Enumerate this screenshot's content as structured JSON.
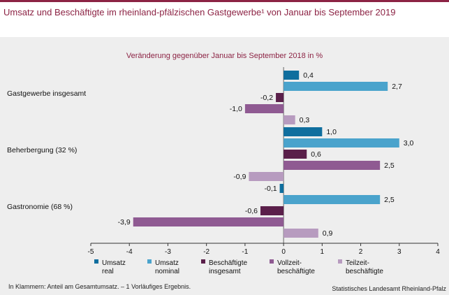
{
  "header": {
    "title": "Umsatz und Beschäftigte im rheinland-pfälzischen Gastgewerbe¹ von Januar bis September 2019",
    "subtitle": "Veränderung gegenüber Januar bis September 2018 in %"
  },
  "footer": {
    "footnote": "In Klammern: Anteil am Gesamtumsatz. – 1 Vorläufiges Ergebnis.",
    "source": "Statistisches Landesamt Rheinland-Pfalz"
  },
  "chart_data": {
    "type": "bar",
    "orientation": "horizontal",
    "title": "Umsatz und Beschäftigte im rheinland-pfälzischen Gastgewerbe¹ von Januar bis September 2019",
    "subtitle": "Veränderung gegenüber Januar bis September 2018 in %",
    "categories": [
      "Gastgewerbe insgesamt",
      "Beherbergung (32 %)",
      "Gastronomie (68 %)"
    ],
    "series": [
      {
        "name": "Umsatz real",
        "legend_lines": [
          "Umsatz",
          "real"
        ],
        "color": "#0f6e9e",
        "values": [
          0.4,
          1.0,
          -0.1
        ]
      },
      {
        "name": "Umsatz nominal",
        "legend_lines": [
          "Umsatz",
          "nominal"
        ],
        "color": "#4aa3cc",
        "values": [
          2.7,
          3.0,
          2.5
        ]
      },
      {
        "name": "Beschäftigte insgesamt",
        "legend_lines": [
          "Beschäftigte",
          "insgesamt"
        ],
        "color": "#5a1f4a",
        "values": [
          -0.2,
          0.6,
          -0.6
        ]
      },
      {
        "name": "Vollzeitbeschäftigte",
        "legend_lines": [
          "Vollzeit-",
          "beschäftigte"
        ],
        "color": "#8f5a92",
        "values": [
          -1.0,
          2.5,
          -3.9
        ]
      },
      {
        "name": "Teilzeitbeschäftigte",
        "legend_lines": [
          "Teilzeit-",
          "beschäftigte"
        ],
        "color": "#b79bbf",
        "values": [
          0.3,
          -0.9,
          0.9
        ]
      }
    ],
    "value_labels": [
      [
        "0,4",
        "1,0",
        "-0,1"
      ],
      [
        "2,7",
        "3,0",
        "2,5"
      ],
      [
        "-0,2",
        "0,6",
        "-0,6"
      ],
      [
        "-1,0",
        "2,5",
        "-3,9"
      ],
      [
        "0,3",
        "-0,9",
        "0,9"
      ]
    ],
    "xlim": [
      -5,
      4
    ],
    "xticks": [
      -5,
      -4,
      -3,
      -2,
      -1,
      0,
      1,
      2,
      3,
      4
    ],
    "xtick_labels": [
      "-5",
      "-4",
      "-3",
      "-2",
      "-1",
      "0",
      "1",
      "2",
      "3",
      "4"
    ],
    "grid": false,
    "legend_position": "bottom"
  }
}
